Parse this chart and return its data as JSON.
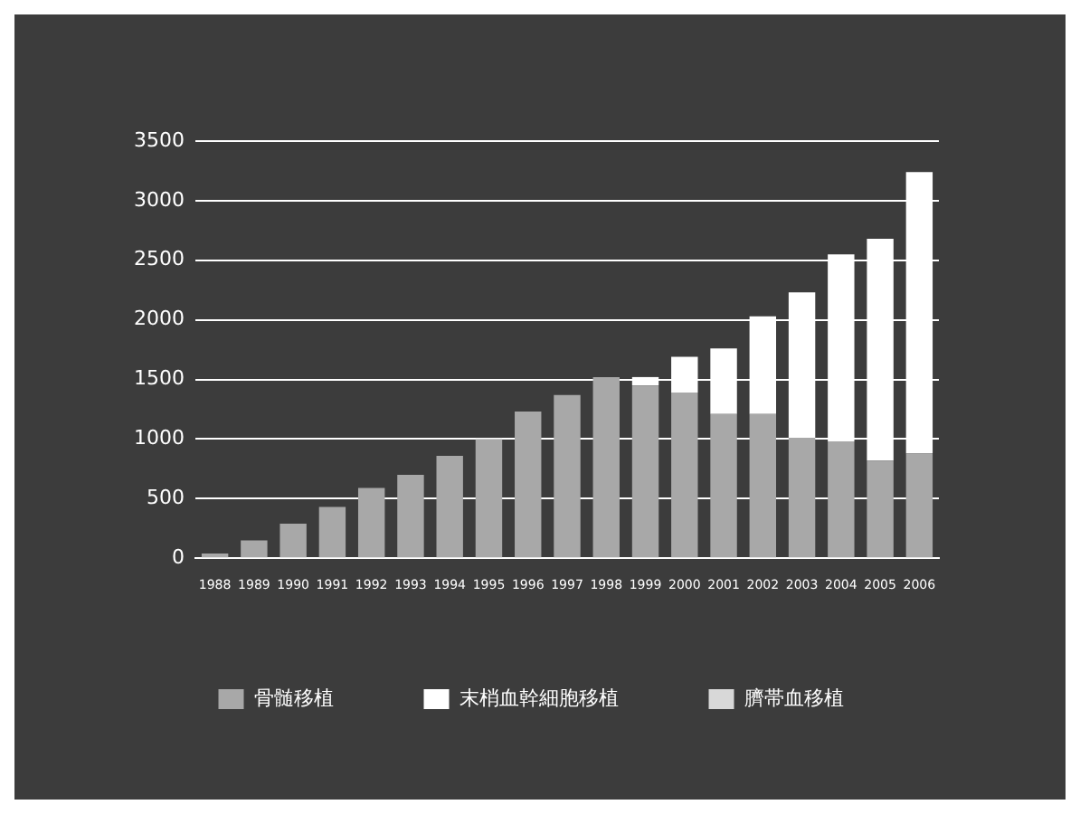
{
  "chart_data": {
    "type": "bar",
    "stacked": true,
    "categories": [
      "1988",
      "1989",
      "1990",
      "1991",
      "1992",
      "1993",
      "1994",
      "1995",
      "1996",
      "1997",
      "1998",
      "1999",
      "2000",
      "2001",
      "2002",
      "2003",
      "2004",
      "2005",
      "2006"
    ],
    "series": [
      {
        "name": "骨髄移植",
        "color": "#a8a8a8",
        "values": [
          40,
          150,
          290,
          430,
          590,
          700,
          860,
          1000,
          1230,
          1370,
          1520,
          1450,
          1390,
          1210,
          1210,
          1010,
          980,
          820,
          880
        ]
      },
      {
        "name": "末梢血幹細胞移植",
        "color": "#ffffff",
        "values": [
          null,
          null,
          null,
          null,
          null,
          null,
          null,
          null,
          null,
          null,
          null,
          70,
          300,
          550,
          820,
          1220,
          1570,
          1860,
          2360
        ]
      },
      {
        "name": "臍帯血移植",
        "color": "#d8d8d8",
        "values": [
          null,
          null,
          null,
          null,
          null,
          null,
          null,
          null,
          null,
          null,
          null,
          null,
          null,
          null,
          null,
          null,
          null,
          null,
          null
        ]
      }
    ],
    "ylim": [
      0,
      3500
    ],
    "yticks": [
      0,
      500,
      1000,
      1500,
      2000,
      2500,
      3000,
      3500
    ],
    "grid": "y",
    "legend": "bottom"
  }
}
